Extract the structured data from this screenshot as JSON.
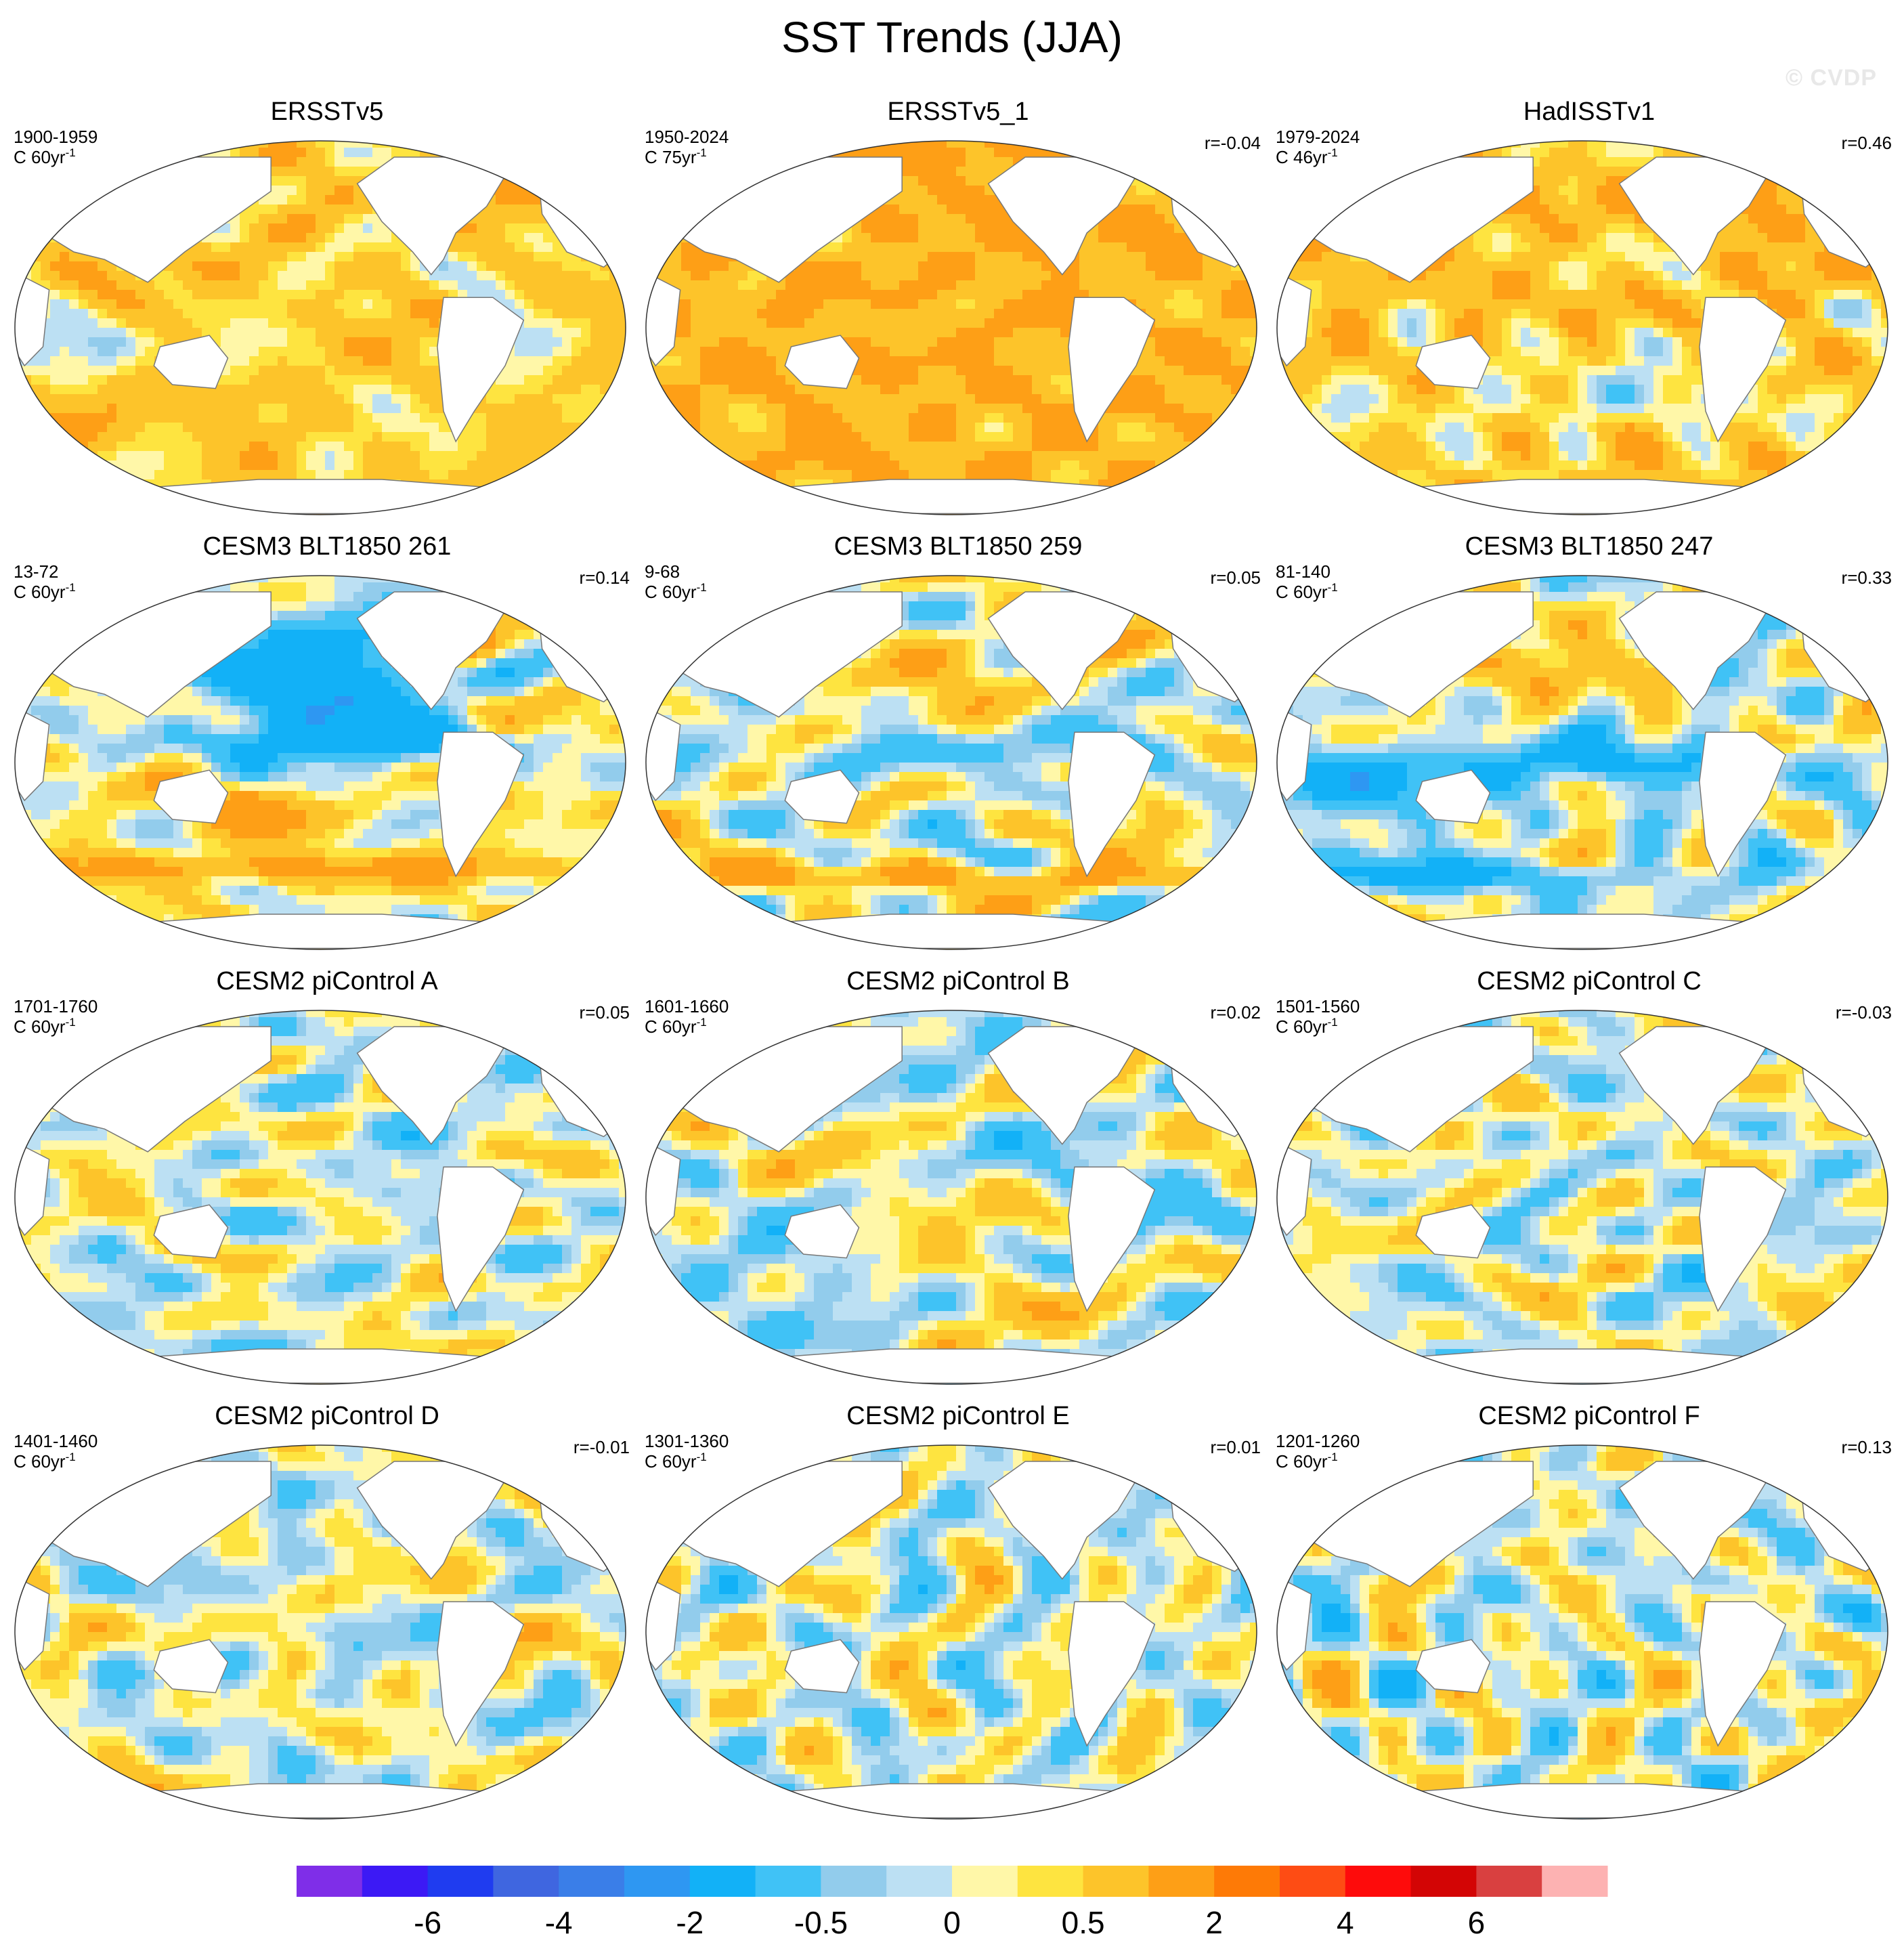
{
  "figure": {
    "title": "SST Trends (JJA)",
    "watermark": "© CVDP"
  },
  "panels": [
    {
      "title": "ERSSTv5",
      "years": "1900-1959",
      "unit": "C 60yr",
      "unit_exp": "-1",
      "corr": "",
      "pattern": "obs_early",
      "seed": 11
    },
    {
      "title": "ERSSTv5_1",
      "years": "1950-2024",
      "unit": "C 75yr",
      "unit_exp": "-1",
      "corr": "r=-0.04",
      "pattern": "obs_warm",
      "seed": 23
    },
    {
      "title": "HadISSTv1",
      "years": "1979-2024",
      "unit": "C 46yr",
      "unit_exp": "-1",
      "corr": "r=0.46",
      "pattern": "obs_recent",
      "seed": 37
    },
    {
      "title": "CESM3 BLT1850 261",
      "years": "13-72",
      "unit": "C 60yr",
      "unit_exp": "-1",
      "corr": "r=0.14",
      "pattern": "blt_cold_pac",
      "seed": 41
    },
    {
      "title": "CESM3 BLT1850 259",
      "years": "9-68",
      "unit": "C 60yr",
      "unit_exp": "-1",
      "corr": "r=0.05",
      "pattern": "blt_mixed",
      "seed": 53
    },
    {
      "title": "CESM3 BLT1850 247",
      "years": "81-140",
      "unit": "C 60yr",
      "unit_exp": "-1",
      "corr": "r=0.33",
      "pattern": "blt_cold_io",
      "seed": 67
    },
    {
      "title": "CESM2 piControl A",
      "years": "1701-1760",
      "unit": "C 60yr",
      "unit_exp": "-1",
      "corr": "r=0.05",
      "pattern": "pic",
      "seed": 71
    },
    {
      "title": "CESM2 piControl B",
      "years": "1601-1660",
      "unit": "C 60yr",
      "unit_exp": "-1",
      "corr": "r=0.02",
      "pattern": "pic",
      "seed": 83
    },
    {
      "title": "CESM2 piControl C",
      "years": "1501-1560",
      "unit": "C 60yr",
      "unit_exp": "-1",
      "corr": "r=-0.03",
      "pattern": "pic",
      "seed": 97
    },
    {
      "title": "CESM2 piControl D",
      "years": "1401-1460",
      "unit": "C 60yr",
      "unit_exp": "-1",
      "corr": "r=-0.01",
      "pattern": "pic",
      "seed": 101
    },
    {
      "title": "CESM2 piControl E",
      "years": "1301-1360",
      "unit": "C 60yr",
      "unit_exp": "-1",
      "corr": "r=0.01",
      "pattern": "pic",
      "seed": 113
    },
    {
      "title": "CESM2 piControl F",
      "years": "1201-1260",
      "unit": "C 60yr",
      "unit_exp": "-1",
      "corr": "r=0.13",
      "pattern": "pic",
      "seed": 127
    }
  ],
  "chart_data": {
    "type": "heatmap",
    "title": "SST Trends (JJA)",
    "projection": "Robinson (global, Pacific-centered)",
    "variable": "Sea surface temperature trend",
    "units": "C per period",
    "colorbar": {
      "levels": [
        -8,
        -6,
        -5,
        -4,
        -3,
        -2,
        -1,
        -0.5,
        -0.25,
        0,
        0.25,
        0.5,
        1,
        2,
        3,
        4,
        5,
        6,
        8
      ],
      "tick_labels": [
        "-6",
        "-4",
        "-2",
        "-0.5",
        "0",
        "0.5",
        "2",
        "4",
        "6"
      ],
      "tick_level_index": [
        1,
        3,
        5,
        7,
        9,
        11,
        13,
        15,
        17
      ],
      "colors": [
        "#7f2ee8",
        "#3c19f5",
        "#1f3cf0",
        "#3f66e0",
        "#3a7ee8",
        "#2e97f2",
        "#12b1f7",
        "#40c2f6",
        "#92ccec",
        "#bce0f3",
        "#fff7a8",
        "#fee440",
        "#fdc42a",
        "#fe9f16",
        "#fe7a06",
        "#fe4c14",
        "#fe0b0b",
        "#d30505",
        "#d94040",
        "#fdb2b2"
      ]
    },
    "panels": [
      {
        "name": "ERSSTv5",
        "period": "1900-1959",
        "r": null
      },
      {
        "name": "ERSSTv5_1",
        "period": "1950-2024",
        "r": -0.04
      },
      {
        "name": "HadISSTv1",
        "period": "1979-2024",
        "r": 0.46
      },
      {
        "name": "CESM3 BLT1850 261",
        "period": "13-72",
        "r": 0.14
      },
      {
        "name": "CESM3 BLT1850 259",
        "period": "9-68",
        "r": 0.05
      },
      {
        "name": "CESM3 BLT1850 247",
        "period": "81-140",
        "r": 0.33
      },
      {
        "name": "CESM2 piControl A",
        "period": "1701-1760",
        "r": 0.05
      },
      {
        "name": "CESM2 piControl B",
        "period": "1601-1660",
        "r": 0.02
      },
      {
        "name": "CESM2 piControl C",
        "period": "1501-1560",
        "r": -0.03
      },
      {
        "name": "CESM2 piControl D",
        "period": "1401-1460",
        "r": -0.01
      },
      {
        "name": "CESM2 piControl E",
        "period": "1301-1360",
        "r": 0.01
      },
      {
        "name": "CESM2 piControl F",
        "period": "1201-1260",
        "r": 0.13
      }
    ]
  }
}
